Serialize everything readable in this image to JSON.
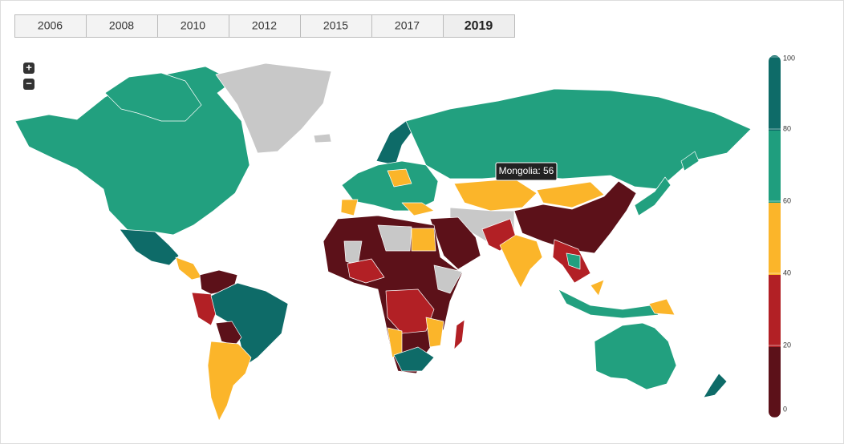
{
  "tabs": [
    {
      "label": "2006"
    },
    {
      "label": "2008"
    },
    {
      "label": "2010"
    },
    {
      "label": "2012"
    },
    {
      "label": "2015"
    },
    {
      "label": "2017"
    },
    {
      "label": "2019",
      "selected": true
    }
  ],
  "zoom": {
    "in": "+",
    "out": "−"
  },
  "tooltip": "Mongolia: 56",
  "legend": {
    "min": 0,
    "max": 100,
    "ticks": [
      0,
      20,
      40,
      60,
      80,
      100
    ],
    "bands": [
      {
        "from": 0,
        "to": 20,
        "color": "#5c1119"
      },
      {
        "from": 20,
        "to": 40,
        "color": "#b22025"
      },
      {
        "from": 40,
        "to": 60,
        "color": "#fbb52a"
      },
      {
        "from": 60,
        "to": 80,
        "color": "#1f9e7e"
      },
      {
        "from": 80,
        "to": 100,
        "color": "#0e6b68"
      }
    ]
  }
}
